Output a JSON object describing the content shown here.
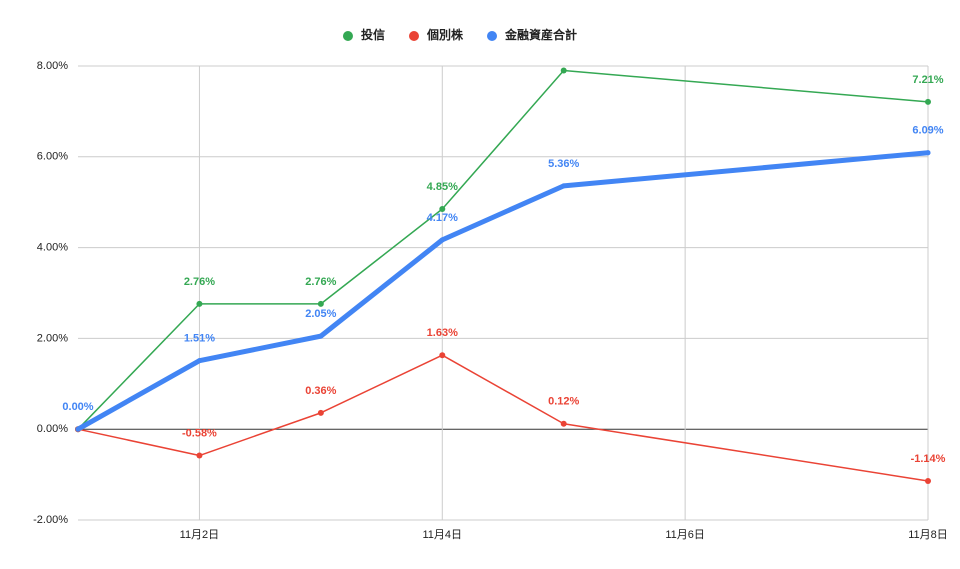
{
  "chart_data": {
    "type": "line",
    "x": [
      1,
      2,
      3,
      4,
      5,
      8
    ],
    "xlim": [
      1,
      8
    ],
    "xticks": [
      {
        "value": 2,
        "label": "11月2日"
      },
      {
        "value": 4,
        "label": "11月4日"
      },
      {
        "value": 6,
        "label": "11月6日"
      },
      {
        "value": 8,
        "label": "11月8日"
      }
    ],
    "ylim": [
      -2,
      8
    ],
    "yticks": [
      {
        "value": -2,
        "label": "-2.00%"
      },
      {
        "value": 0,
        "label": "0.00%"
      },
      {
        "value": 2,
        "label": "2.00%"
      },
      {
        "value": 4,
        "label": "4.00%"
      },
      {
        "value": 6,
        "label": "6.00%"
      },
      {
        "value": 8,
        "label": "8.00%"
      }
    ],
    "grid": true,
    "legend": "top",
    "series": [
      {
        "name": "投信",
        "color": "#34a853",
        "width": 1.5,
        "values": [
          0,
          2.76,
          2.76,
          4.85,
          7.9,
          7.21
        ],
        "value_labels": [
          null,
          "2.76%",
          "2.76%",
          "4.85%",
          null,
          "7.21%"
        ]
      },
      {
        "name": "個別株",
        "color": "#ea4335",
        "width": 1.5,
        "values": [
          0,
          -0.58,
          0.36,
          1.63,
          0.12,
          -1.14
        ],
        "value_labels": [
          null,
          "-0.58%",
          "0.36%",
          "1.63%",
          "0.12%",
          "-1.14%"
        ]
      },
      {
        "name": "金融資産合計",
        "color": "#4285f4",
        "width": 5,
        "values": [
          0,
          1.51,
          2.05,
          4.17,
          5.36,
          6.09
        ],
        "value_labels": [
          "0.00%",
          "1.51%",
          "2.05%",
          "4.17%",
          "5.36%",
          "6.09%"
        ]
      }
    ]
  }
}
